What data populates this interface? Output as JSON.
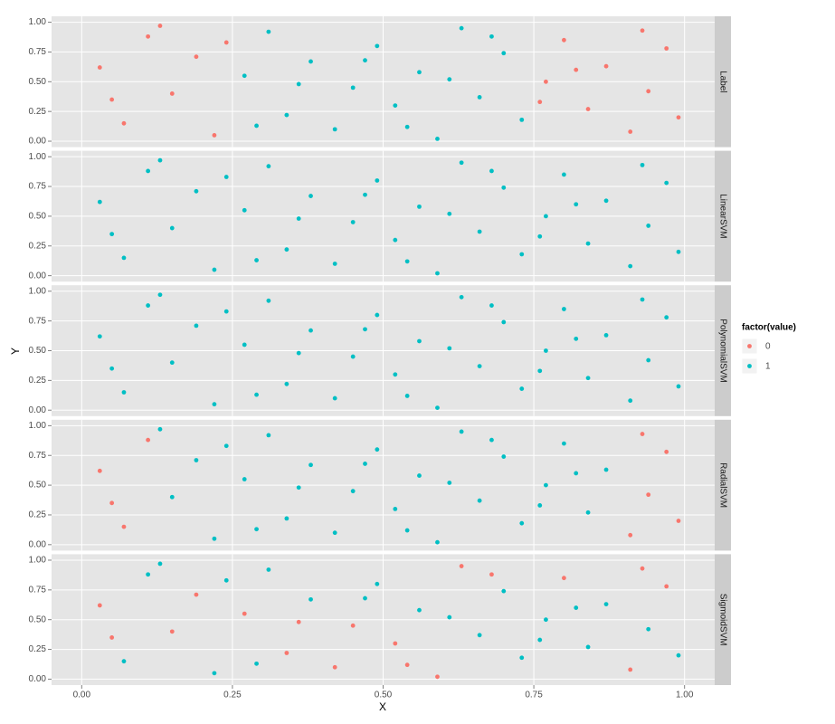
{
  "chart_data": {
    "type": "scatter",
    "x_label": "X",
    "y_label": "Y",
    "legend_title": "factor(value)",
    "series": [
      {
        "name": "0",
        "color": "#F8766D"
      },
      {
        "name": "1",
        "color": "#00BFC4"
      }
    ],
    "xlim": [
      -0.05,
      1.05
    ],
    "ylim": [
      -0.05,
      1.05
    ],
    "xticks": [
      {
        "value": 0,
        "label": "0.00"
      },
      {
        "value": 0.25,
        "label": "0.25"
      },
      {
        "value": 0.5,
        "label": "0.50"
      },
      {
        "value": 0.75,
        "label": "0.75"
      },
      {
        "value": 1,
        "label": "1.00"
      }
    ],
    "yticks": [
      {
        "value": 0,
        "label": "0.00"
      },
      {
        "value": 0.25,
        "label": "0.25"
      },
      {
        "value": 0.5,
        "label": "0.50"
      },
      {
        "value": 0.75,
        "label": "0.75"
      },
      {
        "value": 1,
        "label": "1.00"
      }
    ],
    "grid": true,
    "facets": [
      {
        "label": "Label",
        "series": [
          {
            "x": [
              0.03,
              0.07,
              0.11,
              0.15,
              0.19,
              0.22,
              0.77,
              0.8,
              0.84,
              0.87,
              0.91,
              0.94,
              0.97,
              0.99,
              0.05,
              0.13,
              0.24,
              0.76,
              0.82,
              0.93
            ],
            "y": [
              0.62,
              0.15,
              0.88,
              0.4,
              0.71,
              0.05,
              0.5,
              0.85,
              0.27,
              0.63,
              0.08,
              0.42,
              0.78,
              0.2,
              0.35,
              0.97,
              0.83,
              0.33,
              0.6,
              0.93
            ]
          },
          {
            "x": [
              0.27,
              0.31,
              0.34,
              0.38,
              0.42,
              0.45,
              0.49,
              0.52,
              0.56,
              0.59,
              0.63,
              0.66,
              0.7,
              0.73,
              0.29,
              0.36,
              0.47,
              0.54,
              0.61,
              0.68
            ],
            "y": [
              0.55,
              0.92,
              0.22,
              0.67,
              0.1,
              0.45,
              0.8,
              0.3,
              0.58,
              0.02,
              0.95,
              0.37,
              0.74,
              0.18,
              0.13,
              0.48,
              0.68,
              0.12,
              0.52,
              0.88
            ]
          }
        ]
      },
      {
        "label": "LinearSVM",
        "series": [
          {
            "x": [],
            "y": []
          },
          {
            "x": [
              0.03,
              0.07,
              0.11,
              0.15,
              0.19,
              0.22,
              0.27,
              0.31,
              0.34,
              0.38,
              0.42,
              0.45,
              0.49,
              0.52,
              0.56,
              0.59,
              0.63,
              0.66,
              0.7,
              0.73,
              0.77,
              0.8,
              0.84,
              0.87,
              0.91,
              0.94,
              0.97,
              0.99,
              0.05,
              0.13,
              0.24,
              0.29,
              0.36,
              0.47,
              0.54,
              0.61,
              0.68,
              0.76,
              0.82,
              0.93
            ],
            "y": [
              0.62,
              0.15,
              0.88,
              0.4,
              0.71,
              0.05,
              0.55,
              0.92,
              0.22,
              0.67,
              0.1,
              0.45,
              0.8,
              0.3,
              0.58,
              0.02,
              0.95,
              0.37,
              0.74,
              0.18,
              0.5,
              0.85,
              0.27,
              0.63,
              0.08,
              0.42,
              0.78,
              0.2,
              0.35,
              0.97,
              0.83,
              0.13,
              0.48,
              0.68,
              0.12,
              0.52,
              0.88,
              0.33,
              0.6,
              0.93
            ]
          }
        ]
      },
      {
        "label": "PolynomialSVM",
        "series": [
          {
            "x": [],
            "y": []
          },
          {
            "x": [
              0.03,
              0.07,
              0.11,
              0.15,
              0.19,
              0.22,
              0.27,
              0.31,
              0.34,
              0.38,
              0.42,
              0.45,
              0.49,
              0.52,
              0.56,
              0.59,
              0.63,
              0.66,
              0.7,
              0.73,
              0.77,
              0.8,
              0.84,
              0.87,
              0.91,
              0.94,
              0.97,
              0.99,
              0.05,
              0.13,
              0.24,
              0.29,
              0.36,
              0.47,
              0.54,
              0.61,
              0.68,
              0.76,
              0.82,
              0.93
            ],
            "y": [
              0.62,
              0.15,
              0.88,
              0.4,
              0.71,
              0.05,
              0.55,
              0.92,
              0.22,
              0.67,
              0.1,
              0.45,
              0.8,
              0.3,
              0.58,
              0.02,
              0.95,
              0.37,
              0.74,
              0.18,
              0.5,
              0.85,
              0.27,
              0.63,
              0.08,
              0.42,
              0.78,
              0.2,
              0.35,
              0.97,
              0.83,
              0.13,
              0.48,
              0.68,
              0.12,
              0.52,
              0.88,
              0.33,
              0.6,
              0.93
            ]
          }
        ]
      },
      {
        "label": "RadialSVM",
        "series": [
          {
            "x": [
              0.03,
              0.07,
              0.11,
              0.05,
              0.91,
              0.94,
              0.97,
              0.99,
              0.93
            ],
            "y": [
              0.62,
              0.15,
              0.88,
              0.35,
              0.08,
              0.42,
              0.78,
              0.2,
              0.93
            ]
          },
          {
            "x": [
              0.15,
              0.19,
              0.22,
              0.27,
              0.31,
              0.34,
              0.38,
              0.42,
              0.45,
              0.49,
              0.52,
              0.56,
              0.59,
              0.63,
              0.66,
              0.7,
              0.73,
              0.77,
              0.8,
              0.84,
              0.87,
              0.13,
              0.24,
              0.29,
              0.36,
              0.47,
              0.54,
              0.61,
              0.68,
              0.76,
              0.82
            ],
            "y": [
              0.4,
              0.71,
              0.05,
              0.55,
              0.92,
              0.22,
              0.67,
              0.1,
              0.45,
              0.8,
              0.3,
              0.58,
              0.02,
              0.95,
              0.37,
              0.74,
              0.18,
              0.5,
              0.85,
              0.27,
              0.63,
              0.97,
              0.83,
              0.13,
              0.48,
              0.68,
              0.12,
              0.52,
              0.88,
              0.33,
              0.6
            ]
          }
        ]
      },
      {
        "label": "SigmoidSVM",
        "series": [
          {
            "x": [
              0.03,
              0.15,
              0.19,
              0.27,
              0.34,
              0.42,
              0.45,
              0.52,
              0.59,
              0.63,
              0.8,
              0.91,
              0.97,
              0.05,
              0.36,
              0.54,
              0.68,
              0.93
            ],
            "y": [
              0.62,
              0.4,
              0.71,
              0.55,
              0.22,
              0.1,
              0.45,
              0.3,
              0.02,
              0.95,
              0.85,
              0.08,
              0.78,
              0.35,
              0.48,
              0.12,
              0.88,
              0.93
            ]
          },
          {
            "x": [
              0.07,
              0.11,
              0.22,
              0.31,
              0.38,
              0.49,
              0.56,
              0.66,
              0.7,
              0.73,
              0.77,
              0.84,
              0.87,
              0.94,
              0.99,
              0.13,
              0.24,
              0.29,
              0.47,
              0.61,
              0.76,
              0.82
            ],
            "y": [
              0.15,
              0.88,
              0.05,
              0.92,
              0.67,
              0.8,
              0.58,
              0.37,
              0.74,
              0.18,
              0.5,
              0.27,
              0.63,
              0.42,
              0.2,
              0.97,
              0.83,
              0.13,
              0.68,
              0.52,
              0.33,
              0.6
            ]
          }
        ]
      }
    ]
  }
}
